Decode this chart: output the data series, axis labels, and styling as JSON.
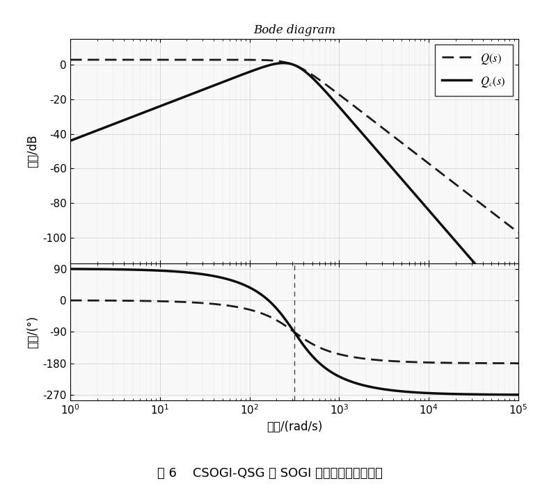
{
  "title": "Bode diagram",
  "xlabel": "频率/(rad/s)",
  "ylabel_mag": "幅値/dB",
  "ylabel_phase": "相位/(°)",
  "mag_ylim": [
    -115,
    15
  ],
  "mag_yticks": [
    0,
    -20,
    -40,
    -60,
    -80,
    -100
  ],
  "phase_ylim": [
    -285,
    105
  ],
  "phase_yticks": [
    90,
    0,
    -90,
    -180,
    -270
  ],
  "xlim_log": [
    1,
    100000
  ],
  "omega0": 314.159,
  "k": 1.4142,
  "dashed_color": "#1a1a1a",
  "solid_color": "#0d0d0d",
  "caption": "图 6    CSOGI-QSG 与 SOGI 虚拟正交信号对比图",
  "vline_freq": 314.159,
  "bg_color": "#f8f8f8",
  "grid_color": "#cccccc",
  "title_fontsize": 12,
  "label_fontsize": 12,
  "tick_fontsize": 11,
  "legend_fontsize": 12
}
